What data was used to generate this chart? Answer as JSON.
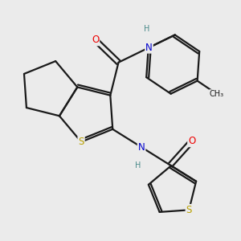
{
  "bg_color": "#ebebeb",
  "bond_color": "#1a1a1a",
  "S_color": "#b8a000",
  "N_color": "#0000cc",
  "O_color": "#ee0000",
  "H_color": "#4a8a8a",
  "line_width": 1.6,
  "figsize": [
    3.0,
    3.0
  ],
  "dpi": 100,
  "xlim": [
    0,
    10
  ],
  "ylim": [
    0,
    10
  ]
}
